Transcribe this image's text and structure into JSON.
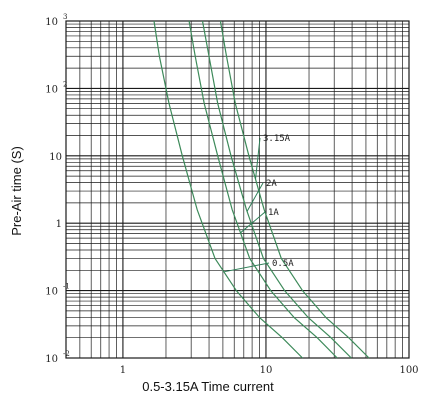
{
  "chart_data": {
    "type": "line",
    "title": "",
    "xlabel": "0.5-3.15A Time current",
    "ylabel": "Pre-Air time (S)",
    "xscale": "log",
    "yscale": "log",
    "xlim": [
      0.4,
      100
    ],
    "ylim": [
      0.01,
      1000
    ],
    "grid": true,
    "x_tick_labels": [
      "1",
      "10",
      "100"
    ],
    "y_tick_labels": [
      {
        "base": "10",
        "exp": "3"
      },
      {
        "base": "10",
        "exp": "2"
      },
      {
        "base": "10",
        "exp": ""
      },
      {
        "base": "1",
        "exp": ""
      },
      {
        "base": "10",
        "exp": "-1"
      },
      {
        "base": "10",
        "exp": "-2"
      }
    ],
    "colors": {
      "curve": "#3d8a5a",
      "grid": "#1a1a1a",
      "leader": "#2f7f58"
    },
    "series": [
      {
        "name": "0.5A",
        "x": [
          1.65,
          1.8,
          2.1,
          2.6,
          3.3,
          4.4,
          6.2,
          9.0,
          13.0,
          18.0
        ],
        "y": [
          1000,
          300,
          60,
          10,
          1.6,
          0.3,
          0.1,
          0.04,
          0.02,
          0.01
        ]
      },
      {
        "name": "1A",
        "x": [
          2.9,
          3.2,
          3.7,
          4.6,
          5.8,
          7.7,
          10.8,
          15.7,
          22.8,
          31.5
        ],
        "y": [
          1000,
          300,
          60,
          10,
          1.6,
          0.3,
          0.1,
          0.04,
          0.02,
          0.01
        ]
      },
      {
        "name": "2A",
        "x": [
          3.6,
          4.0,
          4.6,
          5.7,
          7.3,
          9.6,
          13.5,
          19.7,
          28.5,
          39.5
        ],
        "y": [
          1000,
          300,
          60,
          10,
          1.6,
          0.3,
          0.1,
          0.04,
          0.02,
          0.01
        ]
      },
      {
        "name": "3.15A",
        "x": [
          4.8,
          5.3,
          6.1,
          7.6,
          9.7,
          12.8,
          18.0,
          26.2,
          37.9,
          52.5
        ],
        "y": [
          1000,
          300,
          60,
          10,
          1.6,
          0.3,
          0.1,
          0.04,
          0.02,
          0.01
        ]
      }
    ],
    "annotations": [
      {
        "text": "3.15A",
        "series": "3.15A",
        "at_y": 4.5
      },
      {
        "text": "2A",
        "series": "2A",
        "at_y": 1.5
      },
      {
        "text": "1A",
        "series": "1A",
        "at_y": 0.72
      },
      {
        "text": "0.5A",
        "series": "0.5A",
        "at_y": 0.19
      }
    ]
  }
}
